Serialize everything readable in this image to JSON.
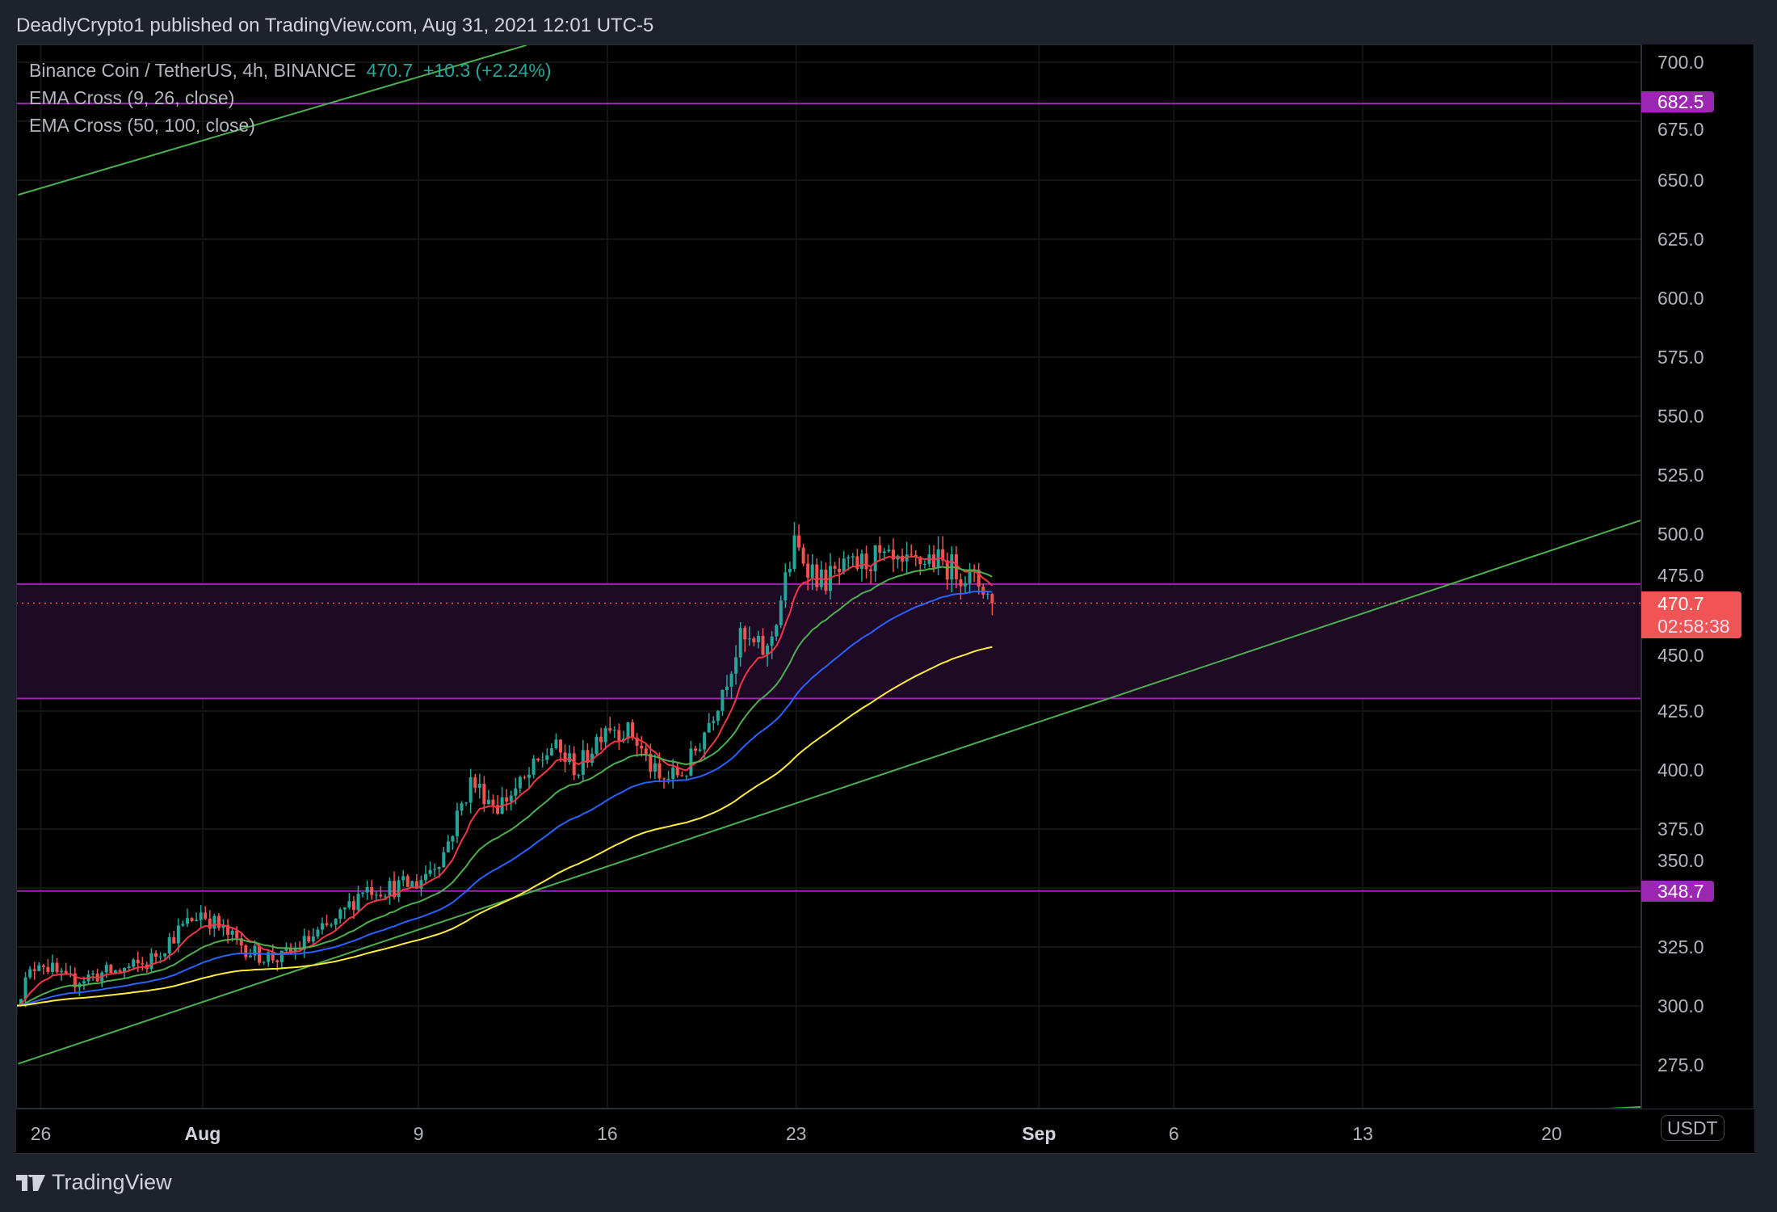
{
  "header": {
    "publisher_line": "DeadlyCrypto1 published on TradingView.com, Aug 31, 2021 12:01 UTC-5"
  },
  "legend": {
    "symbol": "Binance Coin / TetherUS, 4h, BINANCE",
    "last": "470.7",
    "change": "+10.3 (+2.24%)",
    "ind1": "EMA Cross (9, 26, close)",
    "ind2": "EMA Cross (50, 100, close)"
  },
  "currency_label": "USDT",
  "footer": {
    "brand": "TradingView"
  },
  "price_tags": {
    "level_high": "682.5",
    "level_low": "348.7",
    "last": "470.7",
    "countdown": "02:58:38"
  },
  "colors": {
    "up": "#26a69a",
    "down": "#ef5350",
    "ema9": "#f23645",
    "ema26": "#4caf50",
    "ema50": "#2962ff",
    "ema100": "#ffeb3b",
    "level": "#9c27b0",
    "trend": "#4caf50"
  },
  "chart_data": {
    "type": "candlestick",
    "timeframe": "4h",
    "x_unit": "days since Jul 26 2021",
    "y_ticks": [
      "275.0",
      "300.0",
      "325.0",
      "350.0",
      "375.0",
      "400.0",
      "425.0",
      "450.0",
      "475.0",
      "500.0",
      "525.0",
      "550.0",
      "575.0",
      "600.0",
      "625.0",
      "650.0",
      "675.0",
      "700.0"
    ],
    "x_ticks": [
      {
        "label": "26",
        "day": 0,
        "bold": false
      },
      {
        "label": "Aug",
        "day": 6,
        "bold": true
      },
      {
        "label": "9",
        "day": 14,
        "bold": false
      },
      {
        "label": "16",
        "day": 21,
        "bold": false
      },
      {
        "label": "23",
        "day": 28,
        "bold": false
      },
      {
        "label": "Sep",
        "day": 37,
        "bold": true
      },
      {
        "label": "6",
        "day": 42,
        "bold": false
      },
      {
        "label": "13",
        "day": 49,
        "bold": false
      },
      {
        "label": "20",
        "day": 56,
        "bold": false
      }
    ],
    "ylim": [
      258,
      715
    ],
    "xlim": [
      -0.9,
      59.3
    ],
    "daily_close_approx": [
      300,
      320,
      310,
      313,
      315,
      318,
      330,
      340,
      330,
      322,
      320,
      328,
      335,
      350,
      350,
      352,
      365,
      395,
      385,
      395,
      410,
      400,
      420,
      415,
      395,
      400,
      425,
      455,
      450,
      495,
      480,
      485,
      490,
      485,
      490,
      485,
      478,
      470.7
    ],
    "start_day": -1,
    "last_price": 470.7,
    "horizontal_levels": [
      682.5,
      348.7
    ],
    "zone": [
      430.3,
      478.8
    ],
    "trendlines": [
      {
        "from": [
          -0.84,
          643.8
        ],
        "to": [
          18.0,
          707.2
        ]
      },
      {
        "from": [
          -0.84,
          275.5
        ],
        "to": [
          59.3,
          505.8
        ]
      },
      {
        "from": [
          56.05,
          255.3
        ],
        "to": [
          59.3,
          257.2
        ]
      }
    ],
    "emas": [
      9,
      26,
      50,
      100
    ]
  }
}
